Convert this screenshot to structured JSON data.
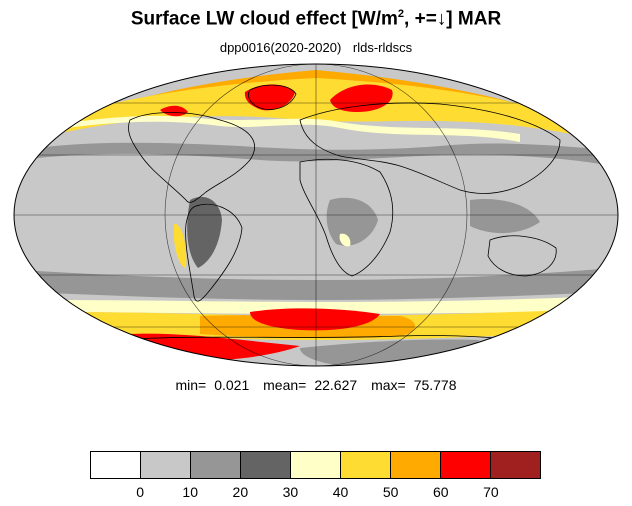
{
  "title": {
    "prefix": "Surface LW cloud effect [W/m",
    "sup": "2",
    "suffix": ", +=↓]  MAR"
  },
  "subtitle": {
    "left": "dpp0016(2020-2020)",
    "right": "rlds-rldscs"
  },
  "stats": {
    "min_label": "min=",
    "min_value": "0.021",
    "mean_label": "mean=",
    "mean_value": "22.627",
    "max_label": "max=",
    "max_value": "75.778"
  },
  "colorbar": {
    "colors": [
      "#ffffff",
      "#c8c8c8",
      "#969696",
      "#646464",
      "#ffffc8",
      "#ffdc32",
      "#ffaa00",
      "#ff0000",
      "#a02020"
    ],
    "labels": [
      "0",
      "10",
      "20",
      "30",
      "40",
      "50",
      "60",
      "70"
    ]
  },
  "map": {
    "projection": "mollweide",
    "ocean_color": "#c8c8c8",
    "land_color": "#c8c8c8",
    "outline_color": "#000000"
  }
}
